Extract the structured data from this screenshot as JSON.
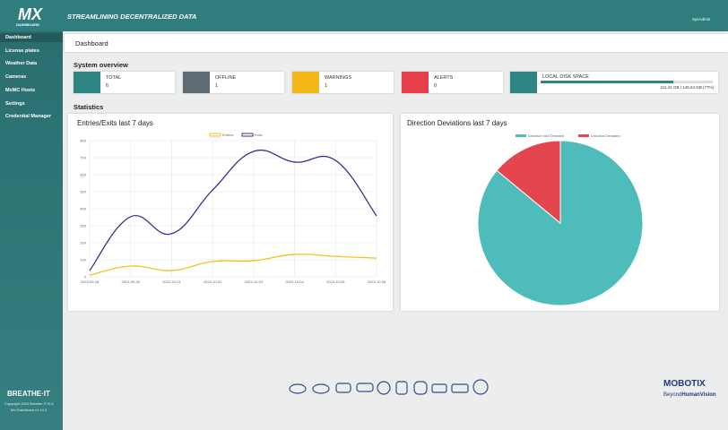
{
  "header": {
    "logo": "MX",
    "logo_sub": "DASHBOARD",
    "tagline": "STREAMLINING DECENTRALIZED DATA",
    "user": "SysAdmin"
  },
  "sidebar": {
    "items": [
      "Dashboard",
      "License plates",
      "Weather Data",
      "Cameras",
      "MxMC Hosts",
      "Settings",
      "Credential Manager"
    ],
    "brand": "BREATHE·IT",
    "copyright": "Copyright 2023 Breathe-IT B.V.",
    "version": "Mx Dashboard v1.14.2"
  },
  "page": {
    "title": "Dashboard",
    "overview_heading": "System overview",
    "statistics_heading": "Statistics"
  },
  "cards": [
    {
      "label": "TOTAL",
      "value": "6",
      "color": "#2e8584"
    },
    {
      "label": "OFFLINE",
      "value": "1",
      "color": "#5f6b73"
    },
    {
      "label": "WARNINGS",
      "value": "1",
      "color": "#f2b718"
    },
    {
      "label": "ALERTS",
      "value": "0",
      "color": "#e5404b"
    }
  ],
  "disk": {
    "label": "LOCAL DISK SPACE",
    "text": "111.41 GB / 145.64 GB (77%)",
    "percent": 77,
    "color": "#2e8584"
  },
  "footer": {
    "brand": "MOBOTIX",
    "slogan_a": "Beyond",
    "slogan_b": "HumanVision"
  },
  "chart_data": [
    {
      "type": "line",
      "title": "Entries/Exits last 7 days",
      "categories": [
        "2023-09-28",
        "2023-09-30",
        "2023-10-01",
        "2023-10-02",
        "2023-10-03",
        "2023-10-04",
        "2023-10-05",
        "2023-10-06"
      ],
      "series": [
        {
          "name": "Entries",
          "color": "#f5c21b",
          "values": [
            10,
            63,
            37,
            90,
            95,
            132,
            120,
            110
          ]
        },
        {
          "name": "Exits",
          "color": "#3b2f8c",
          "values": [
            37,
            353,
            253,
            510,
            737,
            674,
            684,
            358
          ]
        }
      ],
      "ylim": [
        0,
        800
      ],
      "yticks": [
        0,
        100,
        200,
        300,
        400,
        500,
        600,
        700,
        800
      ],
      "grid": true
    },
    {
      "type": "pie",
      "title": "Direction Deviations last 7 days",
      "categories": [
        "Direction Not Deviated",
        "Direction Deviated"
      ],
      "values": [
        86,
        14
      ],
      "colors": [
        "#4dbcba",
        "#e5454e"
      ]
    }
  ]
}
